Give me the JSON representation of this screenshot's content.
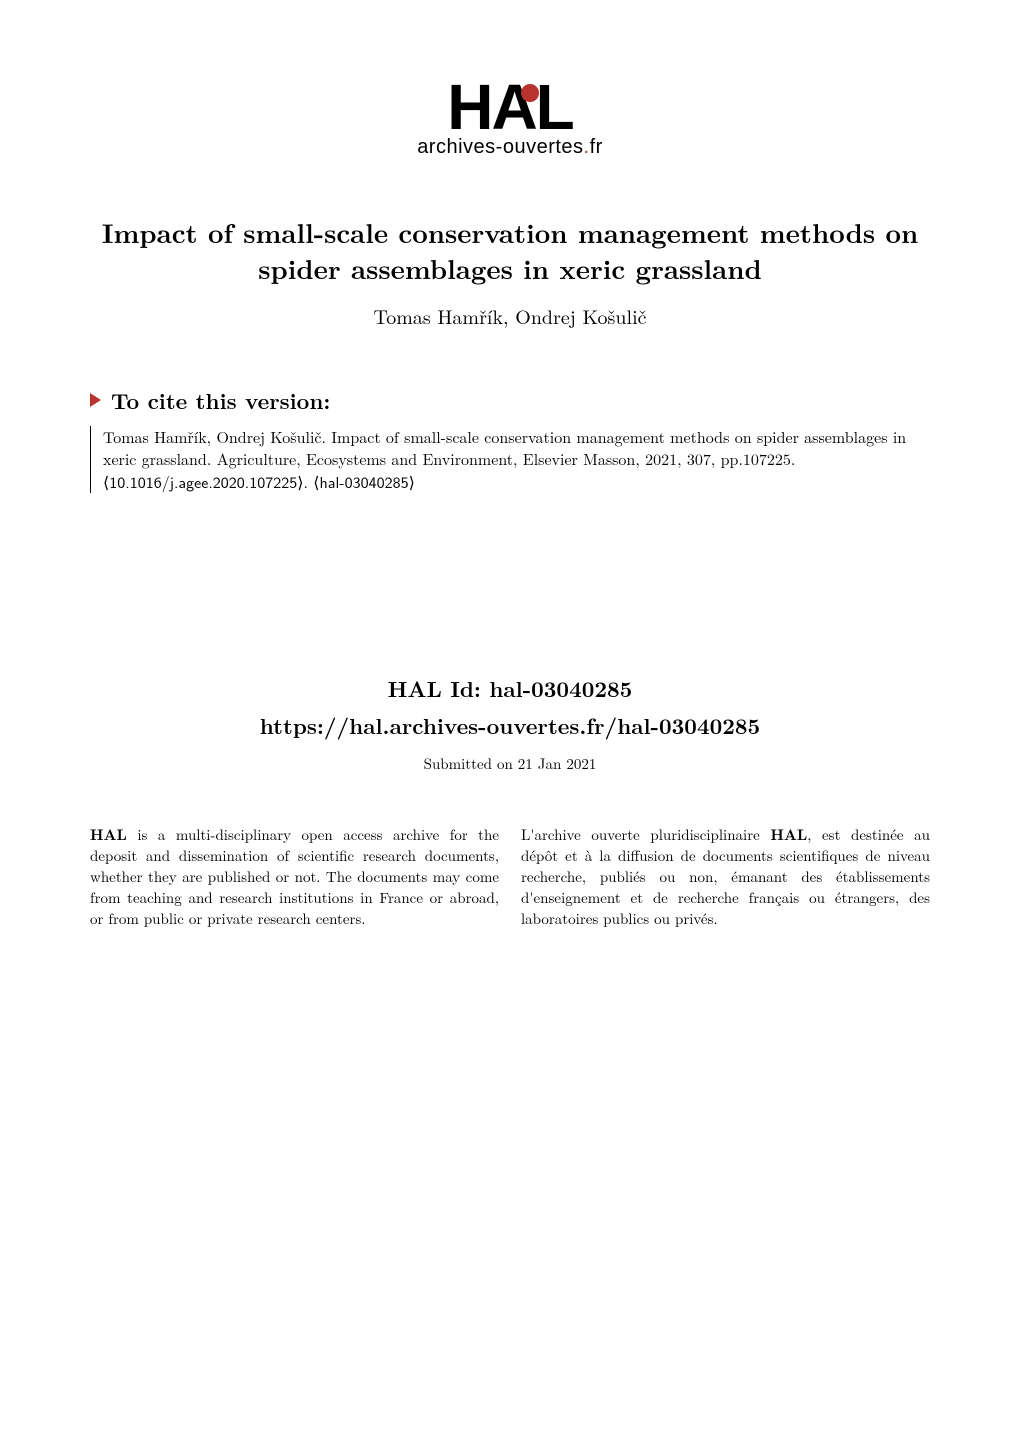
{
  "logo": {
    "text_h": "H",
    "text_a": "A",
    "text_l": "L",
    "subtitle_main": "archives-ouvertes",
    "subtitle_dot": ".",
    "subtitle_ext": "fr",
    "text_color": "#000000",
    "accent_color": "#b8332e"
  },
  "paper": {
    "title": "Impact of small-scale conservation management methods on spider assemblages in xeric grassland",
    "authors": "Tomas Hamřík, Ondrej Košulič"
  },
  "cite": {
    "header": "To cite this version:",
    "body_pre": "Tomas Hamřík, Ondrej Košulič. Impact of small-scale conservation management methods on spider assemblages in xeric grassland. Agriculture, Ecosystems and Environment, Elsevier Masson, 2021, 307, pp.107225. ",
    "doi": "⟨10.1016/j.agee.2020.107225⟩",
    "body_post": ". ",
    "hal_ref": "⟨hal-03040285⟩"
  },
  "hal": {
    "id_label": "HAL Id: hal-03040285",
    "url": "https://hal.archives-ouvertes.fr/hal-03040285",
    "submitted": "Submitted on 21 Jan 2021"
  },
  "description": {
    "left_bold": "HAL",
    "left_text": " is a multi-disciplinary open access archive for the deposit and dissemination of scientific research documents, whether they are published or not. The documents may come from teaching and research institutions in France or abroad, or from public or private research centers.",
    "right_pre": "L'archive ouverte pluridisciplinaire ",
    "right_bold": "HAL",
    "right_post": ", est destinée au dépôt et à la diffusion de documents scientifiques de niveau recherche, publiés ou non, émanant des établissements d'enseignement et de recherche français ou étrangers, des laboratoires publics ou privés."
  },
  "colors": {
    "background": "#ffffff",
    "text": "#000000",
    "accent": "#b8332e"
  }
}
